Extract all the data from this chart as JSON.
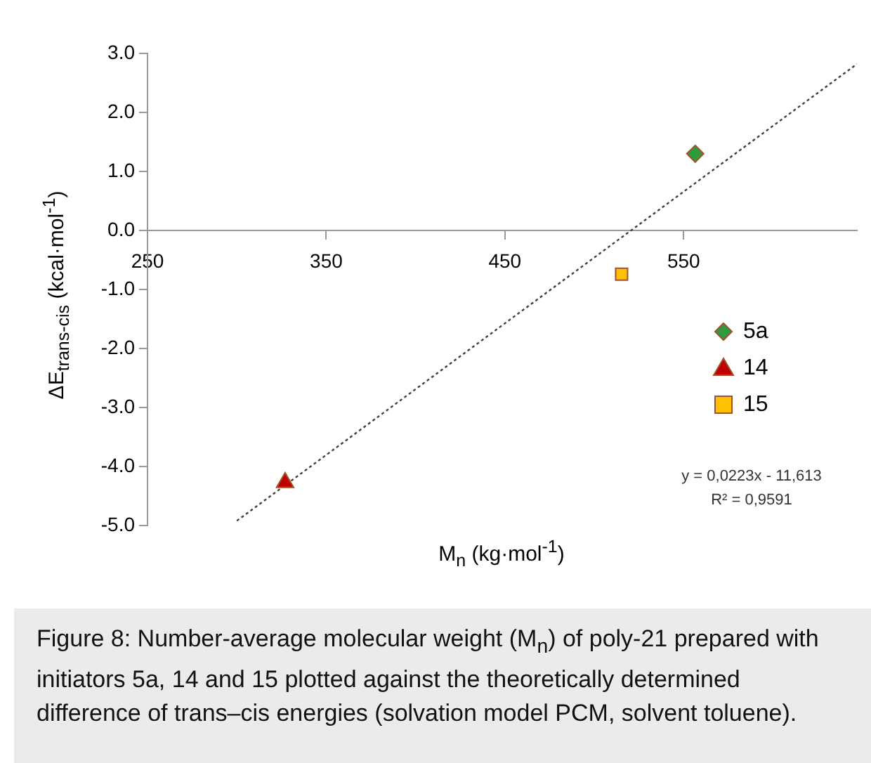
{
  "chart_data": {
    "type": "scatter",
    "xlabel": "M$_{n}$ (kg·mol$^{-1}$)",
    "ylabel": "ΔE$_{trans-cis}$ (kcal·mol$^{-1}$)",
    "xlim": [
      250,
      647
    ],
    "xticks": [
      250,
      350,
      450,
      550
    ],
    "ylim": [
      -5,
      3
    ],
    "yticks": [
      {
        "value": 3,
        "label": "3.0"
      },
      {
        "value": 2,
        "label": "2.0"
      },
      {
        "value": 1,
        "label": "1.0"
      },
      {
        "value": 0,
        "label": "0.0"
      },
      {
        "value": -1,
        "label": "-1.0"
      },
      {
        "value": -2,
        "label": "-2.0"
      },
      {
        "value": -3,
        "label": "-3.0"
      },
      {
        "value": -4,
        "label": "-4.0"
      },
      {
        "value": -5,
        "label": "-5.0"
      }
    ],
    "series": [
      {
        "name": "5a",
        "color": "#2e9b3f",
        "marker": "diamond",
        "x": [
          556.5
        ],
        "values": [
          1.3
        ]
      },
      {
        "name": "14",
        "color": "#c00000",
        "marker": "triangle",
        "x": [
          327
        ],
        "values": [
          -4.27
        ]
      },
      {
        "name": "15",
        "color": "#ffc000",
        "marker": "square",
        "x": [
          515.3
        ],
        "values": [
          -0.74
        ]
      },
      {
        "type": "line",
        "color": "#404040",
        "line_style": "dotted",
        "marker": "none",
        "x": [
          300,
          647
        ],
        "values": [
          -4.92,
          2.82
        ]
      }
    ],
    "legend": "right",
    "grid": false,
    "annotations": [
      "y = 0,0223x - 11,613",
      "R² = 0,9591",
      "Figure 8: Number-average molecular weight (M$_{n}$) of poly-21 prepared with initiators 5a, 14 and 15 plotted against the theoretically determined difference of trans–cis energies (solvation model PCM, solvent toluene)."
    ]
  }
}
